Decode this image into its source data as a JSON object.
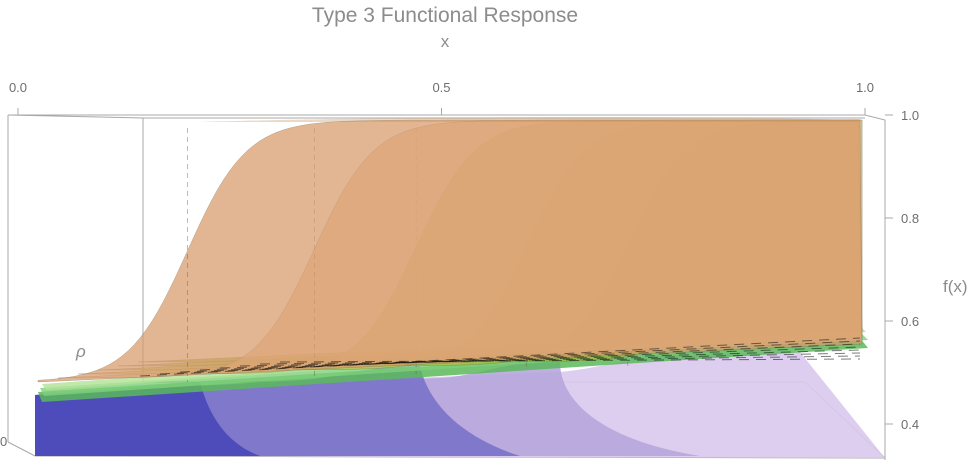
{
  "chart_data": {
    "type": "surface-3d",
    "title": "Type 3 Functional Response",
    "xlabel": "x",
    "zlabel": "f(x)",
    "depth_label": "ρ",
    "depth_tick_label": "0",
    "x_ticks": [
      "0.0",
      "0.5",
      "1.0"
    ],
    "x_tick_values": [
      0.0,
      0.5,
      1.0
    ],
    "z_ticks": [
      "0.4",
      "0.6",
      "0.8",
      "1.0"
    ],
    "z_tick_values": [
      0.4,
      0.6,
      0.8,
      1.0
    ],
    "xlim": [
      0.0,
      1.0
    ],
    "zlim": [
      0.35,
      1.0
    ],
    "grid": false,
    "front_surface": {
      "name": "",
      "description_values": "sigmoid rising from ~0.35 to 1.0 with half-saturation shifting from x~0.25 (front) to x~0.75 (back)",
      "half_saturation_x": [
        0.2,
        0.35,
        0.47,
        0.6,
        0.72,
        0.85
      ],
      "colors": [
        "#d79a6a",
        "#f1c79c",
        "#d8c46c",
        "#b8c050",
        "#a2bc3c",
        "#9aba38"
      ]
    },
    "lower_surface": {
      "colors": [
        "#4a4ab8",
        "#7a72c8",
        "#b6a6dc",
        "#d9c9ee"
      ]
    },
    "bands": {
      "colors": [
        "#5ab85a",
        "#7ed07a",
        "#b2e296",
        "#ffffff"
      ]
    }
  }
}
